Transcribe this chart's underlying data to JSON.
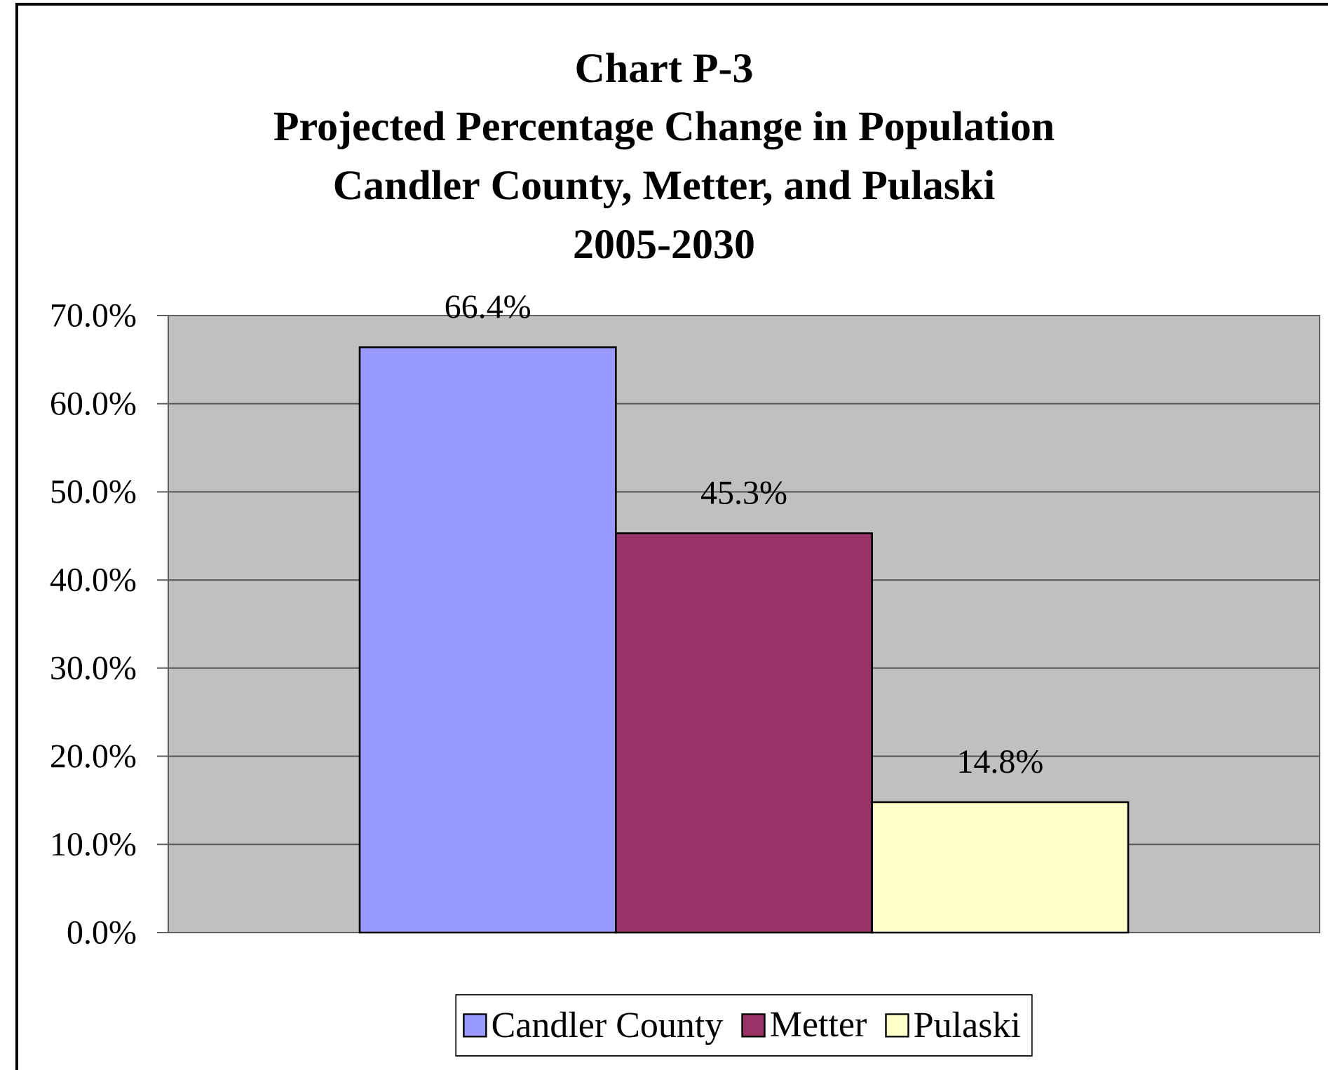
{
  "chart_data": {
    "type": "bar",
    "title": "Chart P-3",
    "subtitle": "Projected Percentage Change in Population Candler County, Metter, and Pulaski 2005-2030",
    "categories": [
      null
    ],
    "series": [
      {
        "name": "Candler County",
        "color": "#9999ff",
        "values": [
          66.4
        ],
        "value_labels": [
          "66.4%"
        ]
      },
      {
        "name": "Metter",
        "color": "#993366",
        "values": [
          45.3
        ],
        "value_labels": [
          "45.3%"
        ]
      },
      {
        "name": "Pulaski",
        "color": "#ffffcc",
        "values": [
          14.8
        ],
        "value_labels": [
          "14.8%"
        ]
      }
    ],
    "ylim": [
      0,
      70
    ],
    "yticks": [
      {
        "value": 0,
        "label": "0.0%"
      },
      {
        "value": 10,
        "label": "10.0%"
      },
      {
        "value": 20,
        "label": "20.0%"
      },
      {
        "value": 30,
        "label": "30.0%"
      },
      {
        "value": 40,
        "label": "40.0%"
      },
      {
        "value": 50,
        "label": "50.0%"
      },
      {
        "value": 60,
        "label": "60.0%"
      },
      {
        "value": 70,
        "label": "70.0%"
      }
    ],
    "grid": "y",
    "legend": "bottom"
  }
}
